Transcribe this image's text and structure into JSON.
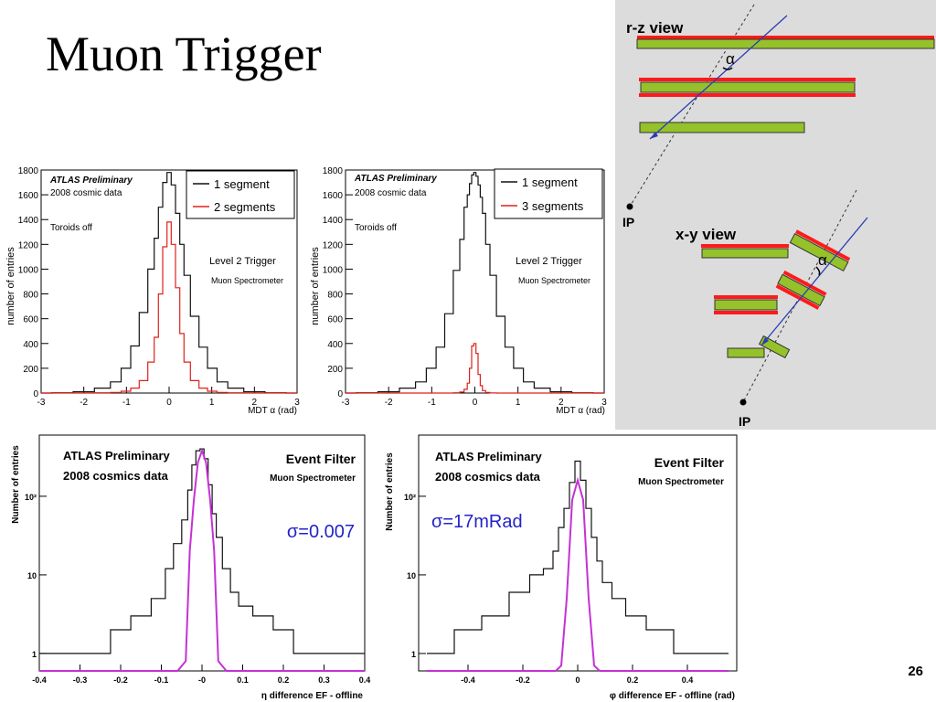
{
  "slide": {
    "title": "Muon Trigger",
    "page_number": "26"
  },
  "colors": {
    "hist_black": "#111111",
    "hist_red": "#e0201b",
    "fit_magenta": "#c531d6",
    "sigma_blue": "#2323c8",
    "chamber_green": "#95c12b",
    "chamber_red": "#ff1a1a",
    "track_blue": "#2a3db3",
    "diagram_bg": "#dcdcdc"
  },
  "panels": [
    {
      "id": "mdt-alpha-2seg",
      "label_atlas": "ATLAS Preliminary",
      "label_data": "2008 cosmic data",
      "label_extra": "Toroids off",
      "label_trigger": "Level 2 Trigger",
      "label_spectro": "Muon Spectrometer",
      "legend": [
        "1 segment",
        "2 segments"
      ],
      "chart_data": {
        "type": "line",
        "xlabel": "MDT α (rad)",
        "ylabel": "number of entries",
        "xlim": [
          -3,
          3
        ],
        "ylim": [
          0,
          1800
        ],
        "xticks": [
          -3,
          -2,
          -1,
          0,
          1,
          2,
          3
        ],
        "yticks": [
          0,
          200,
          400,
          600,
          800,
          1000,
          1200,
          1400,
          1600,
          1800
        ],
        "x": [
          -3,
          -2.5,
          -2,
          -1.5,
          -1.25,
          -1,
          -0.8,
          -0.6,
          -0.4,
          -0.3,
          -0.2,
          -0.1,
          0,
          0.1,
          0.2,
          0.3,
          0.4,
          0.6,
          0.8,
          1,
          1.25,
          1.5,
          2,
          2.5,
          3
        ],
        "series": [
          {
            "name": "1 segment",
            "values": [
              0,
              2,
              10,
              40,
              90,
              200,
              380,
              650,
              1000,
              1250,
              1500,
              1700,
              1780,
              1680,
              1450,
              1200,
              950,
              620,
              370,
              200,
              90,
              40,
              10,
              2,
              0
            ]
          },
          {
            "name": "2 segments",
            "values": [
              0,
              0,
              0,
              2,
              5,
              15,
              40,
              100,
              250,
              450,
              800,
              1180,
              1380,
              1200,
              850,
              480,
              250,
              100,
              40,
              15,
              5,
              2,
              0,
              0,
              0
            ]
          }
        ]
      }
    },
    {
      "id": "mdt-alpha-3seg",
      "label_atlas": "ATLAS Preliminary",
      "label_data": "2008 cosmic data",
      "label_extra": "Toroids off",
      "label_trigger": "Level 2 Trigger",
      "label_spectro": "Muon Spectrometer",
      "legend": [
        "1 segment",
        "3 segments"
      ],
      "chart_data": {
        "type": "line",
        "xlabel": "MDT α (rad)",
        "ylabel": "number of entries",
        "xlim": [
          -3,
          3
        ],
        "ylim": [
          0,
          1800
        ],
        "xticks": [
          -3,
          -2,
          -1,
          0,
          1,
          2,
          3
        ],
        "yticks": [
          0,
          200,
          400,
          600,
          800,
          1000,
          1200,
          1400,
          1600,
          1800
        ],
        "x": [
          -3,
          -2.5,
          -2,
          -1.5,
          -1.25,
          -1,
          -0.8,
          -0.6,
          -0.4,
          -0.3,
          -0.2,
          -0.15,
          -0.1,
          -0.05,
          0,
          0.05,
          0.1,
          0.15,
          0.2,
          0.3,
          0.4,
          0.6,
          0.8,
          1,
          1.25,
          1.5,
          2,
          2.5,
          3
        ],
        "series": [
          {
            "name": "1 segment",
            "values": [
              0,
              2,
              10,
              40,
              90,
              200,
              370,
              640,
              990,
              1240,
              1500,
              1600,
              1690,
              1760,
              1780,
              1750,
              1680,
              1580,
              1450,
              1200,
              950,
              620,
              370,
              200,
              90,
              40,
              10,
              2,
              0
            ]
          },
          {
            "name": "3 segments",
            "values": [
              0,
              0,
              0,
              0,
              0,
              0,
              0,
              0,
              2,
              8,
              30,
              80,
              200,
              380,
              400,
              320,
              150,
              60,
              20,
              5,
              1,
              0,
              0,
              0,
              0,
              0,
              0,
              0,
              0
            ]
          }
        ]
      }
    },
    {
      "id": "ef-eta-diff",
      "label_atlas": "ATLAS Preliminary",
      "label_data": "2008 cosmics data",
      "label_trigger": "Event Filter",
      "label_spectro": "Muon Spectrometer",
      "sigma": "σ=0.007",
      "chart_data": {
        "type": "line",
        "xlabel": "η difference EF - offline",
        "ylabel": "Number of entries",
        "xlim": [
          -0.4,
          0.4
        ],
        "ylim": [
          0.6,
          600
        ],
        "yscale": "log",
        "xticks": [
          -0.4,
          -0.3,
          -0.2,
          -0.1,
          0,
          0.1,
          0.2,
          0.3,
          0.4
        ],
        "xticklabels": [
          "-0.4",
          "-0.3",
          "-0.2",
          "-0.1",
          "-0",
          "0.1",
          "0.2",
          "0.3",
          "0.4"
        ],
        "yticks": [
          1,
          10,
          100
        ],
        "yticklabels": [
          "1",
          "10",
          "10²"
        ],
        "x": [
          -0.4,
          -0.35,
          -0.3,
          -0.25,
          -0.2,
          -0.15,
          -0.1,
          -0.08,
          -0.06,
          -0.04,
          -0.03,
          -0.02,
          -0.01,
          0,
          0.01,
          0.02,
          0.03,
          0.04,
          0.06,
          0.08,
          0.1,
          0.15,
          0.2,
          0.25,
          0.3,
          0.35,
          0.4
        ],
        "series": [
          {
            "name": "data",
            "values": [
              1,
              1,
              1,
              1,
              2,
              3,
              5,
              12,
              25,
              50,
              120,
              250,
              380,
              400,
              300,
              140,
              60,
              30,
              12,
              6,
              4,
              3,
              2,
              1,
              1,
              1,
              1
            ]
          },
          {
            "name": "fit",
            "values": [
              0.6,
              0.6,
              0.6,
              0.6,
              0.6,
              0.6,
              0.6,
              0.6,
              0.6,
              0.8,
              20,
              90,
              270,
              380,
              270,
              90,
              20,
              0.8,
              0.6,
              0.6,
              0.6,
              0.6,
              0.6,
              0.6,
              0.6,
              0.6,
              0.6
            ]
          }
        ]
      }
    },
    {
      "id": "ef-phi-diff",
      "label_atlas": "ATLAS Preliminary",
      "label_data": "2008 cosmics data",
      "label_trigger": "Event Filter",
      "label_spectro": "Muon Spectrometer",
      "sigma": "σ=17mRad",
      "chart_data": {
        "type": "line",
        "xlabel": "φ difference EF - offline (rad)",
        "ylabel": "Number of entries",
        "xlim": [
          -0.58,
          0.58
        ],
        "ylim": [
          0.6,
          600
        ],
        "yscale": "log",
        "xticks": [
          -0.4,
          -0.2,
          0,
          0.2,
          0.4
        ],
        "xticklabels": [
          "-0.4",
          "-0.2",
          "0",
          "0.2",
          "0.4"
        ],
        "yticks": [
          1,
          10,
          100
        ],
        "yticklabels": [
          "1",
          "10",
          "10²"
        ],
        "x": [
          -0.55,
          -0.5,
          -0.4,
          -0.3,
          -0.2,
          -0.15,
          -0.1,
          -0.08,
          -0.06,
          -0.04,
          -0.02,
          0,
          0.02,
          0.04,
          0.06,
          0.08,
          0.1,
          0.15,
          0.2,
          0.3,
          0.4,
          0.5,
          0.55
        ],
        "series": [
          {
            "name": "data",
            "values": [
              1,
              1,
              2,
              3,
              6,
              10,
              12,
              20,
              40,
              70,
              150,
              280,
              160,
              70,
              30,
              15,
              8,
              5,
              3,
              2,
              1,
              1,
              1
            ]
          },
          {
            "name": "fit",
            "values": [
              0.6,
              0.6,
              0.6,
              0.6,
              0.6,
              0.6,
              0.6,
              0.6,
              0.7,
              5,
              90,
              160,
              90,
              5,
              0.7,
              0.6,
              0.6,
              0.6,
              0.6,
              0.6,
              0.6,
              0.6,
              0.6
            ]
          }
        ]
      }
    }
  ],
  "diagram": {
    "rz_title": "r-z view",
    "xy_title": "x-y view",
    "ip_label": "IP",
    "alpha_label": "α"
  }
}
